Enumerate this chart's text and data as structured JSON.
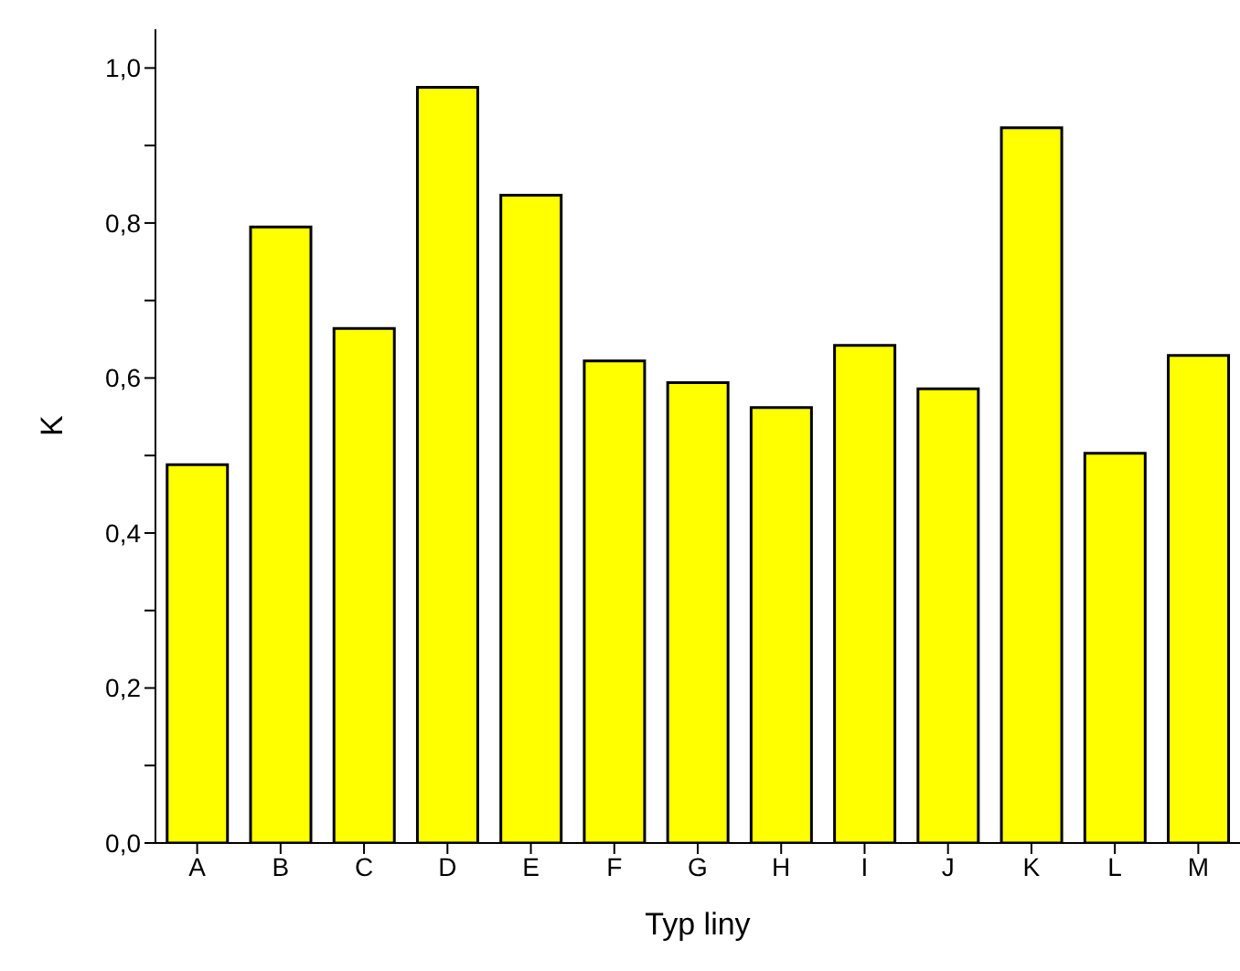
{
  "chart_data": {
    "type": "bar",
    "xlabel": "Typ liny",
    "ylabel": "K",
    "categories": [
      "A",
      "B",
      "C",
      "D",
      "E",
      "F",
      "G",
      "H",
      "I",
      "J",
      "K",
      "L",
      "M"
    ],
    "values": [
      0.488,
      0.795,
      0.664,
      0.975,
      0.836,
      0.622,
      0.594,
      0.562,
      0.642,
      0.586,
      0.923,
      0.503,
      0.629
    ],
    "color": "#ffff00",
    "ylim": [
      0,
      1.05
    ],
    "yticks": [
      {
        "value": 0,
        "label": "0,0"
      },
      {
        "value": 0.1,
        "label": null
      },
      {
        "value": 0.2,
        "label": "0,2"
      },
      {
        "value": 0.3,
        "label": null
      },
      {
        "value": 0.4,
        "label": "0,4"
      },
      {
        "value": 0.5,
        "label": null
      },
      {
        "value": 0.6,
        "label": "0,6"
      },
      {
        "value": 0.7,
        "label": null
      },
      {
        "value": 0.8,
        "label": "0,8"
      },
      {
        "value": 0.9,
        "label": null
      },
      {
        "value": 1.0,
        "label": "1,0"
      }
    ],
    "grid": false,
    "legend": false
  }
}
